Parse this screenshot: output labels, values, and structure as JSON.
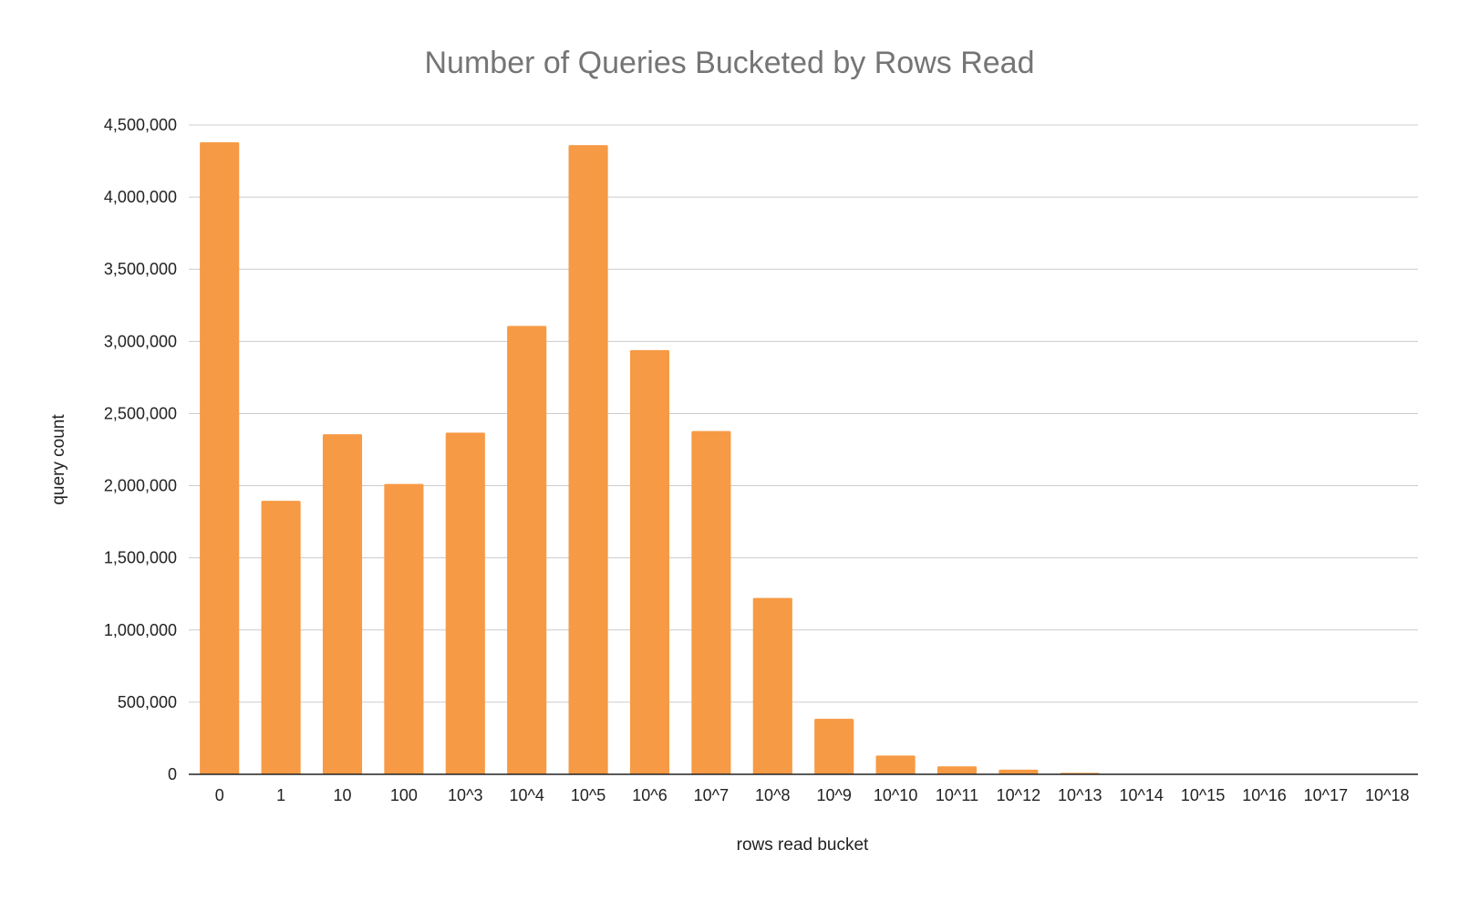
{
  "chart_data": {
    "type": "bar",
    "title": "Number of Queries Bucketed by Rows Read",
    "xlabel": "rows read bucket",
    "ylabel": "query count",
    "categories": [
      "0",
      "1",
      "10",
      "100",
      "10^3",
      "10^4",
      "10^5",
      "10^6",
      "10^7",
      "10^8",
      "10^9",
      "10^10",
      "10^11",
      "10^12",
      "10^13",
      "10^14",
      "10^15",
      "10^16",
      "10^17",
      "10^18"
    ],
    "values": [
      4380000,
      1895000,
      2357000,
      2012000,
      2368000,
      3107000,
      4360000,
      2940000,
      2379000,
      1222000,
      385000,
      130000,
      55000,
      32000,
      10000,
      0,
      0,
      0,
      0,
      0
    ],
    "ylim": [
      0,
      4500000
    ],
    "yticks": [
      0,
      500000,
      1000000,
      1500000,
      2000000,
      2500000,
      3000000,
      3500000,
      4000000,
      4500000
    ],
    "ytick_labels": [
      "0",
      "500,000",
      "1,000,000",
      "1,500,000",
      "2,000,000",
      "2,500,000",
      "3,000,000",
      "3,500,000",
      "4,000,000",
      "4,500,000"
    ],
    "grid": true,
    "legend": "none",
    "bar_color": "#f79a45"
  }
}
